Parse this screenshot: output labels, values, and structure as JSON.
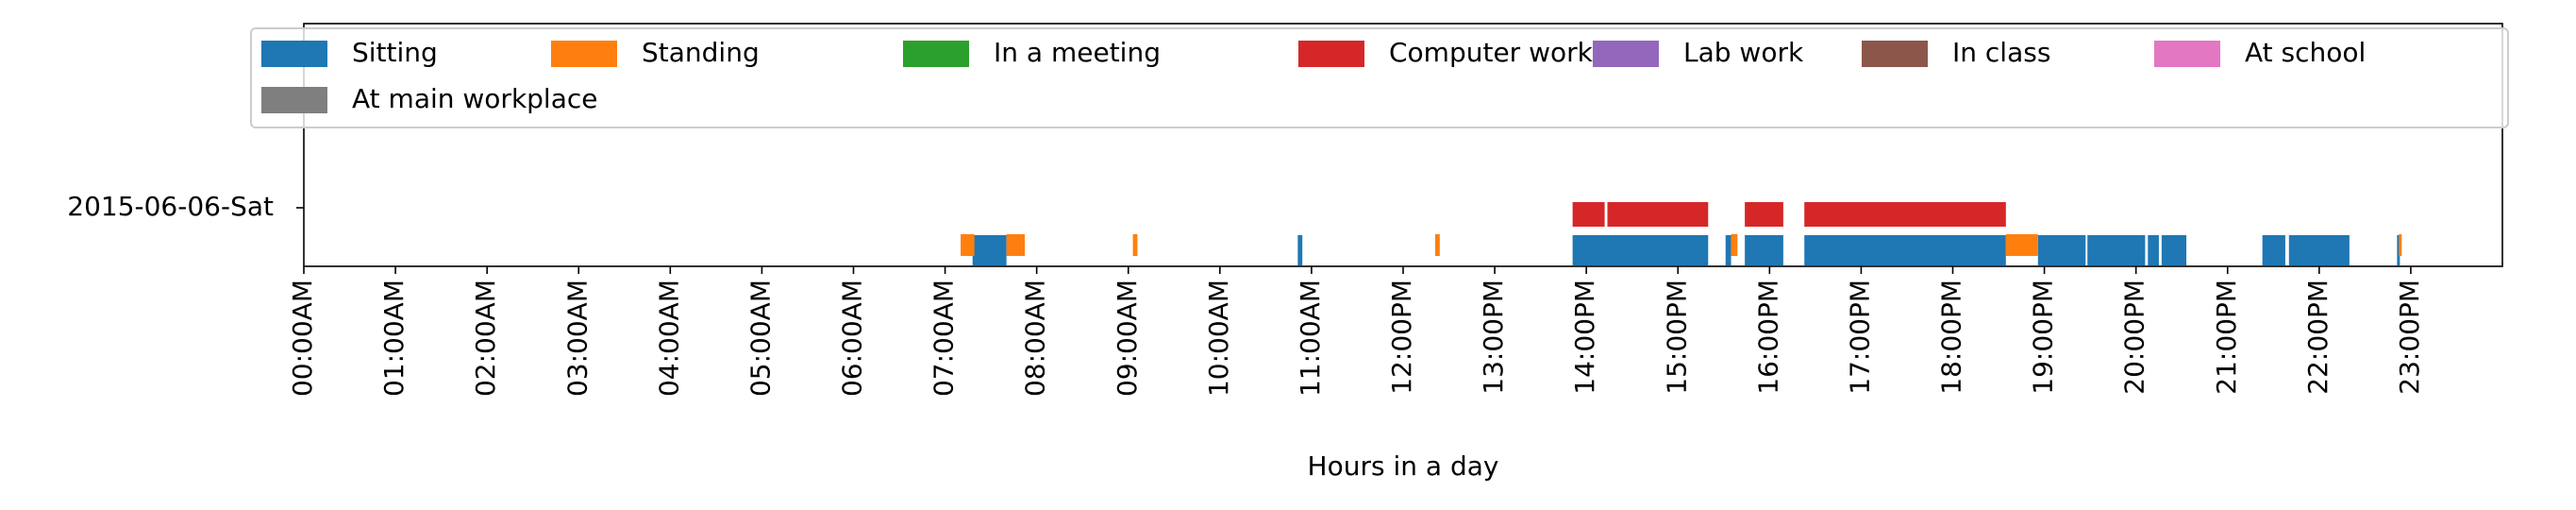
{
  "chart_data": {
    "type": "bar",
    "subtype": "timeline",
    "title": "",
    "xlabel": "Hours in a day",
    "ylabel": "",
    "xlim": [
      0,
      24
    ],
    "row_label": "2015-06-06-Sat",
    "x_ticks": [
      "00:00AM",
      "01:00AM",
      "02:00AM",
      "03:00AM",
      "04:00AM",
      "05:00AM",
      "06:00AM",
      "07:00AM",
      "08:00AM",
      "09:00AM",
      "10:00AM",
      "11:00AM",
      "12:00PM",
      "13:00PM",
      "14:00PM",
      "15:00PM",
      "16:00PM",
      "17:00PM",
      "18:00PM",
      "19:00PM",
      "20:00PM",
      "21:00PM",
      "22:00PM",
      "23:00PM"
    ],
    "legend_position": "top",
    "series": [
      {
        "name": "Sitting",
        "color": "#1f77b4",
        "lane": 0,
        "intervals": [
          [
            7.3,
            7.67
          ],
          [
            10.85,
            10.9
          ],
          [
            13.85,
            15.33
          ],
          [
            15.52,
            15.58
          ],
          [
            15.73,
            16.15
          ],
          [
            16.38,
            18.58
          ],
          [
            18.93,
            19.45
          ],
          [
            19.47,
            20.1
          ],
          [
            20.13,
            20.25
          ],
          [
            20.28,
            20.55
          ],
          [
            21.38,
            21.63
          ],
          [
            21.67,
            22.33
          ],
          [
            22.85,
            22.88
          ]
        ]
      },
      {
        "name": "Standing",
        "color": "#ff7f0e",
        "lane": 1,
        "intervals": [
          [
            7.17,
            7.32
          ],
          [
            7.67,
            7.87
          ],
          [
            9.05,
            9.1
          ],
          [
            12.35,
            12.4
          ],
          [
            15.58,
            15.65
          ],
          [
            18.58,
            18.93
          ],
          [
            22.87,
            22.9
          ]
        ]
      },
      {
        "name": "In a meeting",
        "color": "#2ca02c",
        "lane": 2,
        "intervals": []
      },
      {
        "name": "Computer work",
        "color": "#d62728",
        "lane": 2,
        "intervals": [
          [
            13.85,
            14.2
          ],
          [
            14.23,
            15.33
          ],
          [
            15.73,
            16.15
          ],
          [
            16.38,
            18.58
          ]
        ]
      },
      {
        "name": "Lab work",
        "color": "#9467bd",
        "lane": 2,
        "intervals": []
      },
      {
        "name": "In class",
        "color": "#8c564b",
        "lane": 2,
        "intervals": []
      },
      {
        "name": "At school",
        "color": "#e377c2",
        "lane": 2,
        "intervals": []
      },
      {
        "name": "At main workplace",
        "color": "#7f7f7f",
        "lane": 2,
        "intervals": []
      }
    ]
  }
}
